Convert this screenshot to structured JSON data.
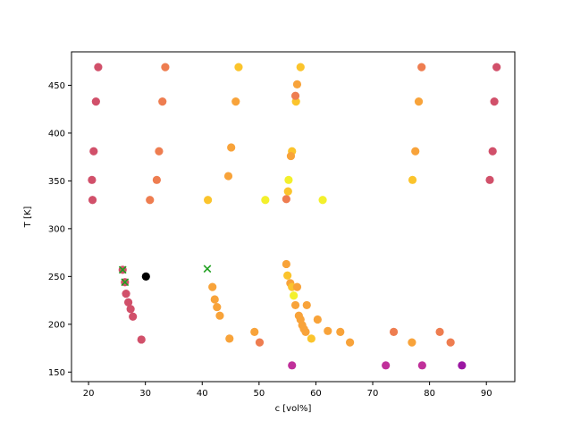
{
  "chart_data": {
    "type": "scatter",
    "xlabel": "c [vol%]",
    "ylabel": "T [K]",
    "xlim": [
      17,
      95
    ],
    "ylim": [
      140,
      485
    ],
    "xticks": [
      20,
      30,
      40,
      50,
      60,
      70,
      80,
      90
    ],
    "yticks": [
      150,
      200,
      250,
      300,
      350,
      400,
      450
    ],
    "grid": false,
    "colors": {
      "crimson": "#d1506a",
      "coral": "#ee7d50",
      "orange": "#f8a33a",
      "gold": "#fbc42c",
      "yellow": "#f3f02c",
      "magenta": "#c0309a",
      "purple": "#9b17a2",
      "black": "#000000",
      "cross": "#20a020"
    },
    "points": [
      {
        "x": 21.7,
        "y": 469,
        "c": "crimson"
      },
      {
        "x": 33.5,
        "y": 469,
        "c": "coral"
      },
      {
        "x": 46.4,
        "y": 469,
        "c": "gold"
      },
      {
        "x": 57.3,
        "y": 469,
        "c": "gold"
      },
      {
        "x": 78.6,
        "y": 469,
        "c": "coral"
      },
      {
        "x": 91.8,
        "y": 469,
        "c": "crimson"
      },
      {
        "x": 21.3,
        "y": 433,
        "c": "crimson"
      },
      {
        "x": 33.0,
        "y": 433,
        "c": "coral"
      },
      {
        "x": 45.9,
        "y": 433,
        "c": "orange"
      },
      {
        "x": 56.5,
        "y": 433,
        "c": "gold"
      },
      {
        "x": 78.1,
        "y": 433,
        "c": "orange"
      },
      {
        "x": 91.4,
        "y": 433,
        "c": "crimson"
      },
      {
        "x": 56.7,
        "y": 451,
        "c": "orange"
      },
      {
        "x": 56.4,
        "y": 439,
        "c": "coral"
      },
      {
        "x": 20.9,
        "y": 381,
        "c": "crimson"
      },
      {
        "x": 32.4,
        "y": 381,
        "c": "coral"
      },
      {
        "x": 45.1,
        "y": 385,
        "c": "orange"
      },
      {
        "x": 55.8,
        "y": 381,
        "c": "gold"
      },
      {
        "x": 55.6,
        "y": 376,
        "c": "orange"
      },
      {
        "x": 77.5,
        "y": 381,
        "c": "orange"
      },
      {
        "x": 91.1,
        "y": 381,
        "c": "crimson"
      },
      {
        "x": 20.6,
        "y": 351,
        "c": "crimson"
      },
      {
        "x": 32.0,
        "y": 351,
        "c": "coral"
      },
      {
        "x": 44.6,
        "y": 355,
        "c": "orange"
      },
      {
        "x": 55.2,
        "y": 351,
        "c": "yellow"
      },
      {
        "x": 77.0,
        "y": 351,
        "c": "gold"
      },
      {
        "x": 90.6,
        "y": 351,
        "c": "crimson"
      },
      {
        "x": 20.7,
        "y": 330,
        "c": "crimson"
      },
      {
        "x": 30.8,
        "y": 330,
        "c": "coral"
      },
      {
        "x": 41.0,
        "y": 330,
        "c": "gold"
      },
      {
        "x": 51.1,
        "y": 330,
        "c": "yellow"
      },
      {
        "x": 54.8,
        "y": 331,
        "c": "coral"
      },
      {
        "x": 55.1,
        "y": 339,
        "c": "gold"
      },
      {
        "x": 61.2,
        "y": 330,
        "c": "yellow"
      },
      {
        "x": 54.8,
        "y": 263,
        "c": "orange"
      },
      {
        "x": 55.0,
        "y": 251,
        "c": "gold"
      },
      {
        "x": 55.5,
        "y": 243,
        "c": "orange"
      },
      {
        "x": 55.8,
        "y": 239,
        "c": "gold"
      },
      {
        "x": 56.7,
        "y": 239,
        "c": "orange"
      },
      {
        "x": 56.1,
        "y": 230,
        "c": "yellow"
      },
      {
        "x": 56.4,
        "y": 220,
        "c": "orange"
      },
      {
        "x": 58.4,
        "y": 220,
        "c": "orange"
      },
      {
        "x": 57.0,
        "y": 209,
        "c": "orange"
      },
      {
        "x": 57.3,
        "y": 205,
        "c": "orange"
      },
      {
        "x": 60.3,
        "y": 205,
        "c": "orange"
      },
      {
        "x": 57.6,
        "y": 199,
        "c": "orange"
      },
      {
        "x": 57.9,
        "y": 195,
        "c": "orange"
      },
      {
        "x": 58.2,
        "y": 192,
        "c": "orange"
      },
      {
        "x": 62.1,
        "y": 193,
        "c": "orange"
      },
      {
        "x": 64.3,
        "y": 192,
        "c": "orange"
      },
      {
        "x": 59.2,
        "y": 185,
        "c": "gold"
      },
      {
        "x": 66.0,
        "y": 181,
        "c": "orange"
      },
      {
        "x": 26.0,
        "y": 257,
        "c": "crimson"
      },
      {
        "x": 26.4,
        "y": 244,
        "c": "crimson"
      },
      {
        "x": 26.6,
        "y": 232,
        "c": "crimson"
      },
      {
        "x": 27.0,
        "y": 223,
        "c": "crimson"
      },
      {
        "x": 27.4,
        "y": 216,
        "c": "crimson"
      },
      {
        "x": 27.8,
        "y": 208,
        "c": "crimson"
      },
      {
        "x": 29.3,
        "y": 184,
        "c": "crimson"
      },
      {
        "x": 41.8,
        "y": 239,
        "c": "orange"
      },
      {
        "x": 42.2,
        "y": 226,
        "c": "orange"
      },
      {
        "x": 42.6,
        "y": 218,
        "c": "orange"
      },
      {
        "x": 43.1,
        "y": 209,
        "c": "orange"
      },
      {
        "x": 44.8,
        "y": 185,
        "c": "orange"
      },
      {
        "x": 49.2,
        "y": 192,
        "c": "orange"
      },
      {
        "x": 50.1,
        "y": 181,
        "c": "coral"
      },
      {
        "x": 73.7,
        "y": 192,
        "c": "coral"
      },
      {
        "x": 76.9,
        "y": 181,
        "c": "orange"
      },
      {
        "x": 81.8,
        "y": 192,
        "c": "coral"
      },
      {
        "x": 83.7,
        "y": 181,
        "c": "coral"
      },
      {
        "x": 55.8,
        "y": 157,
        "c": "magenta"
      },
      {
        "x": 72.3,
        "y": 157,
        "c": "magenta"
      },
      {
        "x": 78.7,
        "y": 157,
        "c": "magenta"
      },
      {
        "x": 85.7,
        "y": 157,
        "c": "purple"
      },
      {
        "x": 30.1,
        "y": 250,
        "c": "black"
      }
    ],
    "crosses": [
      {
        "x": 26.0,
        "y": 257
      },
      {
        "x": 26.4,
        "y": 244
      },
      {
        "x": 40.9,
        "y": 258
      }
    ]
  }
}
